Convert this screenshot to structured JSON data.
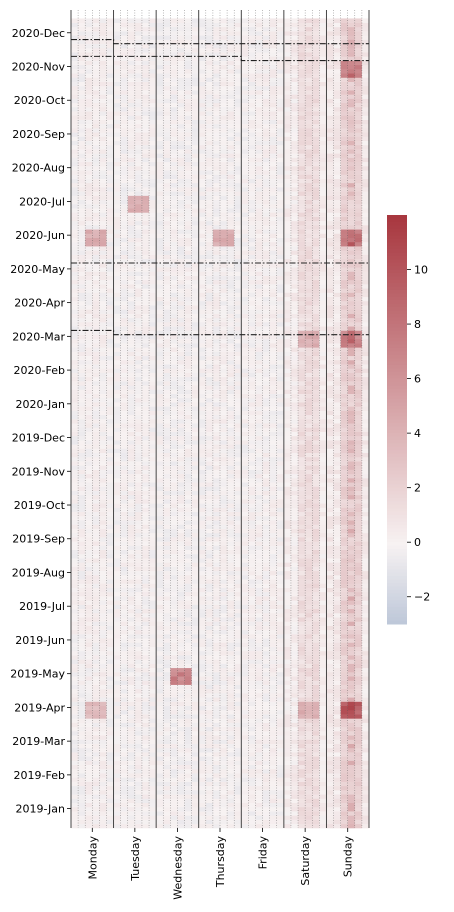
{
  "chart_data": {
    "type": "heatmap",
    "title": "",
    "xlabel": "",
    "ylabel": "",
    "x_categories": [
      "Monday",
      "Tuesday",
      "Wednesday",
      "Thursday",
      "Friday",
      "Saturday",
      "Sunday"
    ],
    "y_ticks": [
      "2020-Dec",
      "2020-Nov",
      "2020-Oct",
      "2020-Sep",
      "2020-Aug",
      "2020-Jul",
      "2020-Jun",
      "2020-May",
      "2020-Apr",
      "2020-Mar",
      "2020-Feb",
      "2020-Jan",
      "2019-Dec",
      "2019-Nov",
      "2019-Oct",
      "2019-Sep",
      "2019-Aug",
      "2019-Jul",
      "2019-Jun",
      "2019-May",
      "2019-Apr",
      "2019-Mar",
      "2019-Feb",
      "2019-Jan"
    ],
    "y_range": [
      "2019-Jan",
      "2020-Dec"
    ],
    "colorbar": {
      "ticks": [
        10,
        8,
        6,
        4,
        2,
        0,
        -2
      ],
      "range": [
        -3,
        12
      ],
      "colormap": "vlag (blue-white-red), centered at 0",
      "low_color": "#bcc6d8",
      "mid_color": "#f7f2f2",
      "high_color": "#a8373f"
    },
    "lockdown_periods": [
      {
        "from": "2020-Mar",
        "to": "2020-May"
      },
      {
        "from": "2020-Nov",
        "to": "2020-Dec"
      }
    ],
    "notable_values": [
      {
        "day": "Sunday",
        "month": "2019-Apr",
        "value": 11
      },
      {
        "day": "Sunday",
        "month": "2020-Jun",
        "value": 9
      },
      {
        "day": "Sunday",
        "month": "2020-Nov",
        "value": 8
      },
      {
        "day": "Sunday",
        "month": "2020-Mar",
        "value": 8
      },
      {
        "day": "Wednesday",
        "month": "2019-May",
        "value": 8
      },
      {
        "day": "Saturday",
        "month": "2020-Mar",
        "value": 5
      },
      {
        "day": "Saturday",
        "month": "2019-Apr",
        "value": 5
      },
      {
        "day": "Tuesday",
        "month": "2020-Jul",
        "value": 5
      },
      {
        "day": "Monday",
        "month": "2020-Jun",
        "value": 5
      },
      {
        "day": "Thursday",
        "month": "2020-Jun",
        "value": 5
      },
      {
        "day": "Monday",
        "month": "2019-Apr",
        "value": 4
      }
    ],
    "grid": "dotted vertical lines between hours; solid vertical lines between days"
  }
}
